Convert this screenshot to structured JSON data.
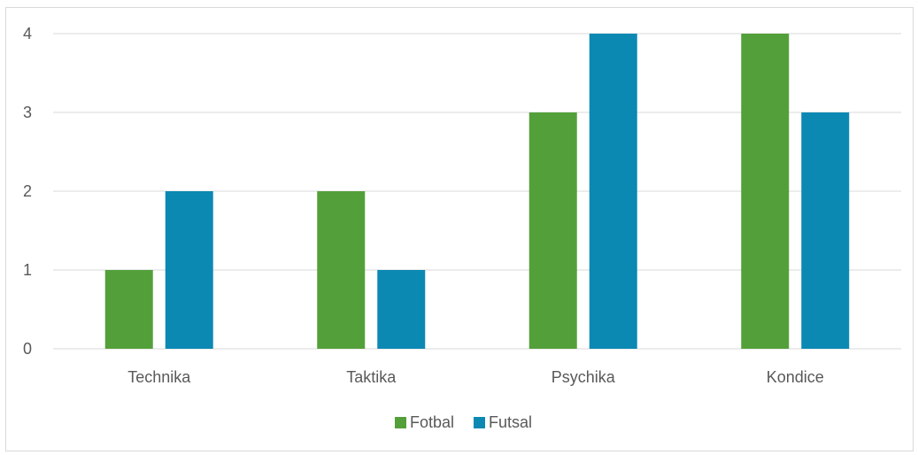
{
  "chart_data": {
    "type": "bar",
    "categories": [
      "Technika",
      "Taktika",
      "Psychika",
      "Kondice"
    ],
    "series": [
      {
        "name": "Fotbal",
        "values": [
          1,
          2,
          3,
          4
        ],
        "color": "#53a03a"
      },
      {
        "name": "Futsal",
        "values": [
          2,
          1,
          4,
          3
        ],
        "color": "#0b89b3"
      }
    ],
    "yticks": [
      "0",
      "1",
      "2",
      "3",
      "4"
    ],
    "ylim": [
      0,
      4
    ],
    "grid": true,
    "legend_position": "bottom",
    "gridline_color": "#d9d9d9"
  }
}
